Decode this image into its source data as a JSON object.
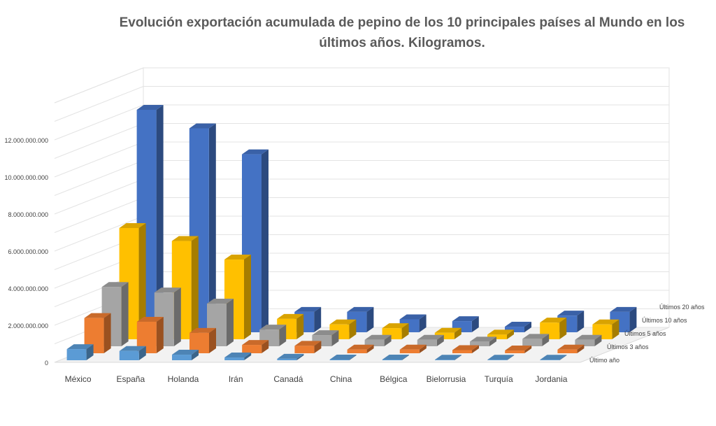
{
  "chart_data": {
    "type": "bar",
    "subtype": "3d-column",
    "title": "Evolución exportación acumulada de pepino de los 10 principales países al Mundo en los últimos años. Kilogramos.",
    "categories": [
      "México",
      "España",
      "Holanda",
      "Irán",
      "Canadá",
      "China",
      "Bélgica",
      "Bielorrusia",
      "Turquía",
      "Jordania"
    ],
    "series": [
      {
        "name": "Último año",
        "color": "#5b9bd5",
        "values": [
          600000000,
          500000000,
          300000000,
          150000000,
          80000000,
          40000000,
          40000000,
          30000000,
          30000000,
          30000000
        ]
      },
      {
        "name": "Últimos 3 años",
        "color": "#ed7d31",
        "values": [
          1900000000,
          1700000000,
          1100000000,
          450000000,
          400000000,
          200000000,
          200000000,
          170000000,
          150000000,
          200000000
        ]
      },
      {
        "name": "Últimos 5 años",
        "color": "#a5a5a5",
        "values": [
          3200000000,
          2900000000,
          2300000000,
          900000000,
          600000000,
          350000000,
          350000000,
          250000000,
          400000000,
          350000000
        ]
      },
      {
        "name": "Últimos 10 años",
        "color": "#ffc000",
        "values": [
          6000000000,
          5300000000,
          4300000000,
          1100000000,
          800000000,
          600000000,
          350000000,
          250000000,
          900000000,
          800000000
        ]
      },
      {
        "name": "Últimos 20 años",
        "color": "#4472c4",
        "values": [
          12000000000,
          11000000000,
          9600000000,
          1100000000,
          1100000000,
          700000000,
          600000000,
          300000000,
          900000000,
          1100000000
        ]
      }
    ],
    "y_ticks": [
      "0",
      "2.000.000.000",
      "4.000.000.000",
      "6.000.000.000",
      "8.000.000.000",
      "10.000.000.000",
      "12.000.000.000"
    ],
    "ylim": [
      0,
      14000000000
    ],
    "grid": true
  }
}
